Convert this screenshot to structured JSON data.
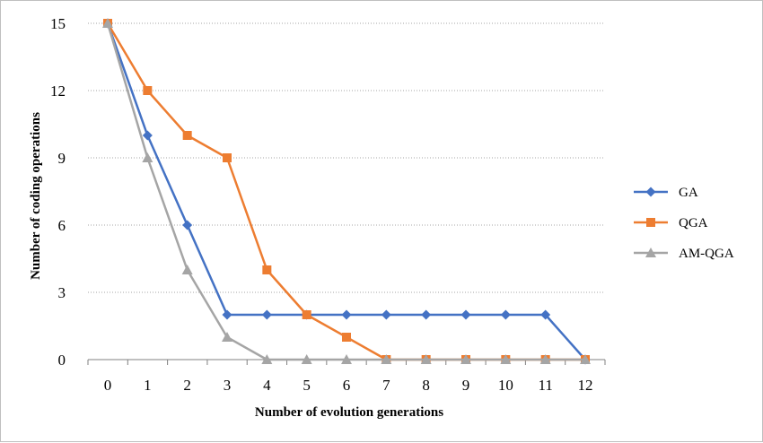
{
  "chart_data": {
    "type": "line",
    "title": "",
    "xlabel": "Number of evolution generations",
    "ylabel": "Number of coding operations",
    "categories": [
      "0",
      "1",
      "2",
      "3",
      "4",
      "5",
      "6",
      "7",
      "8",
      "9",
      "10",
      "11",
      "12"
    ],
    "x": [
      0,
      1,
      2,
      3,
      4,
      5,
      6,
      7,
      8,
      9,
      10,
      11,
      12
    ],
    "ylim": [
      0,
      15
    ],
    "yticks": [
      "0",
      "3",
      "6",
      "9",
      "12",
      "15"
    ],
    "grid": "horizontal dotted",
    "legend_position": "right",
    "series": [
      {
        "name": "GA",
        "color": "#4472c4",
        "marker": "diamond",
        "values": [
          15,
          10,
          6,
          2,
          2,
          2,
          2,
          2,
          2,
          2,
          2,
          2,
          0
        ]
      },
      {
        "name": "QGA",
        "color": "#ed7d31",
        "marker": "square",
        "values": [
          15,
          12,
          10,
          9,
          4,
          2,
          1,
          0,
          0,
          0,
          0,
          0,
          0
        ]
      },
      {
        "name": "AM-QGA",
        "color": "#a5a5a5",
        "marker": "triangle",
        "values": [
          15,
          9,
          4,
          1,
          0,
          0,
          0,
          0,
          0,
          0,
          0,
          0,
          0
        ]
      }
    ]
  }
}
